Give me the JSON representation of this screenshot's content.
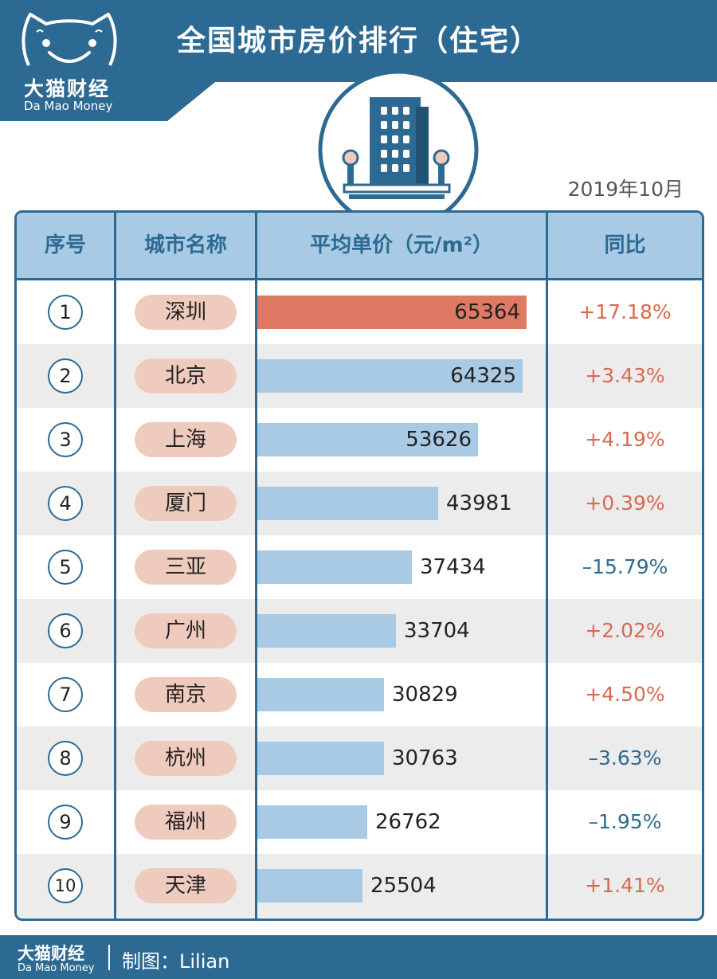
{
  "header": {
    "title": "全国城市房价排行（住宅）",
    "logo_cn": "大猫财经",
    "logo_en": "Da Mao Money"
  },
  "date": "2019年10月",
  "table": {
    "columns": [
      "序号",
      "城市名称",
      "平均单价（元/m²）",
      "同比"
    ]
  },
  "chart_data": {
    "type": "bar",
    "title": "全国城市房价排行（住宅）",
    "categories": [
      "深圳",
      "北京",
      "上海",
      "厦门",
      "三亚",
      "广州",
      "南京",
      "杭州",
      "福州",
      "天津"
    ],
    "ranks": [
      "1",
      "2",
      "3",
      "4",
      "5",
      "6",
      "7",
      "8",
      "9",
      "10"
    ],
    "values": [
      65364,
      64325,
      53626,
      43981,
      37434,
      33704,
      30829,
      30763,
      26762,
      25504
    ],
    "yoy": [
      "+17.18%",
      "+3.43%",
      "+4.19%",
      "+0.39%",
      "–15.79%",
      "+2.02%",
      "+4.50%",
      "–3.63%",
      "–1.95%",
      "+1.41%"
    ],
    "ylim": [
      0,
      66000
    ]
  },
  "footer": {
    "brand_cn": "大猫财经",
    "brand_en": "Da Mao Money",
    "credit": "制图：Lilian"
  },
  "colors": {
    "primary": "#2d6a93",
    "header_fill": "#a9cae5",
    "bar": "#a9cae5",
    "top_bar": "#de7a63",
    "positive": "#d9694f",
    "negative": "#2d6a93",
    "city_pill": "#efcbbd",
    "row_alt": "#ececec"
  }
}
